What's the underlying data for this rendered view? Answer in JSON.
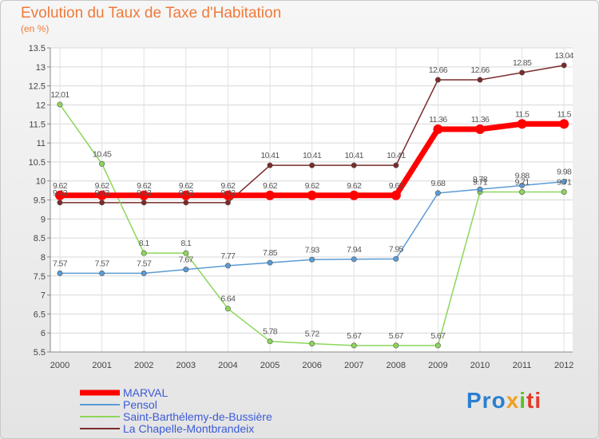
{
  "title": "Evolution du Taux de Taxe d'Habitation",
  "unit": "(en %)",
  "logo": [
    "Pro",
    "x",
    "i",
    "ti"
  ],
  "chart_data": {
    "type": "line",
    "title": "Evolution du Taux de Taxe d'Habitation",
    "ylabel": "(en %)",
    "x": [
      "2000",
      "2001",
      "2002",
      "2003",
      "2004",
      "2005",
      "2006",
      "2007",
      "2008",
      "2009",
      "2010",
      "2011",
      "2012"
    ],
    "ylim": [
      5.5,
      13.5
    ],
    "yticks": [
      "5.5",
      "6",
      "6.5",
      "7",
      "7.5",
      "8",
      "8.5",
      "9",
      "9.5",
      "10",
      "10.5",
      "11",
      "11.5",
      "12",
      "12.5",
      "13",
      "13.5"
    ],
    "grid": true,
    "legend_position": "bottom-left",
    "series": [
      {
        "name": "MARVAL",
        "color": "#ff0000",
        "values": [
          9.62,
          9.62,
          9.62,
          9.62,
          9.62,
          9.62,
          9.62,
          9.62,
          9.62,
          11.36,
          11.36,
          11.5,
          11.5
        ],
        "labels": [
          "9.62",
          "9.62",
          "9.62",
          "9.62",
          "9.62",
          "9.62",
          "9.62",
          "9.62",
          "9.62",
          "11.36",
          "11.36",
          "11.5",
          "11.5"
        ]
      },
      {
        "name": "Pensol",
        "color": "#5b9bd5",
        "values": [
          7.57,
          7.57,
          7.57,
          7.67,
          7.77,
          7.85,
          7.93,
          7.94,
          7.95,
          9.68,
          9.78,
          9.88,
          9.98
        ],
        "labels": [
          "7.57",
          "7.57",
          "7.57",
          "7.67",
          "7.77",
          "7.85",
          "7.93",
          "7.94",
          "7.95",
          "9.68",
          "9.78",
          "9.88",
          "9.98"
        ]
      },
      {
        "name": "Saint-Barthélemy-de-Bussière",
        "color": "#8cd65b",
        "values": [
          12.01,
          10.45,
          8.1,
          8.1,
          6.64,
          5.78,
          5.72,
          5.67,
          5.67,
          5.67,
          9.71,
          9.71,
          9.71
        ],
        "labels": [
          "12.01",
          "10.45",
          "8.1",
          "8.1",
          "6.64",
          "5.78",
          "5.72",
          "5.67",
          "5.67",
          "5.67",
          "9.71",
          "9.71",
          "9.71"
        ]
      },
      {
        "name": "La Chapelle-Montbrandeix",
        "color": "#7b2a2a",
        "values": [
          9.43,
          9.43,
          9.43,
          9.43,
          9.43,
          10.41,
          10.41,
          10.41,
          10.41,
          12.66,
          12.66,
          12.85,
          13.04
        ],
        "labels": [
          "9.43",
          "9.43",
          "9.43",
          "9.43",
          "9.43",
          "10.41",
          "10.41",
          "10.41",
          "10.41",
          "12.66",
          "12.66",
          "12.85",
          "13.04"
        ]
      }
    ]
  }
}
